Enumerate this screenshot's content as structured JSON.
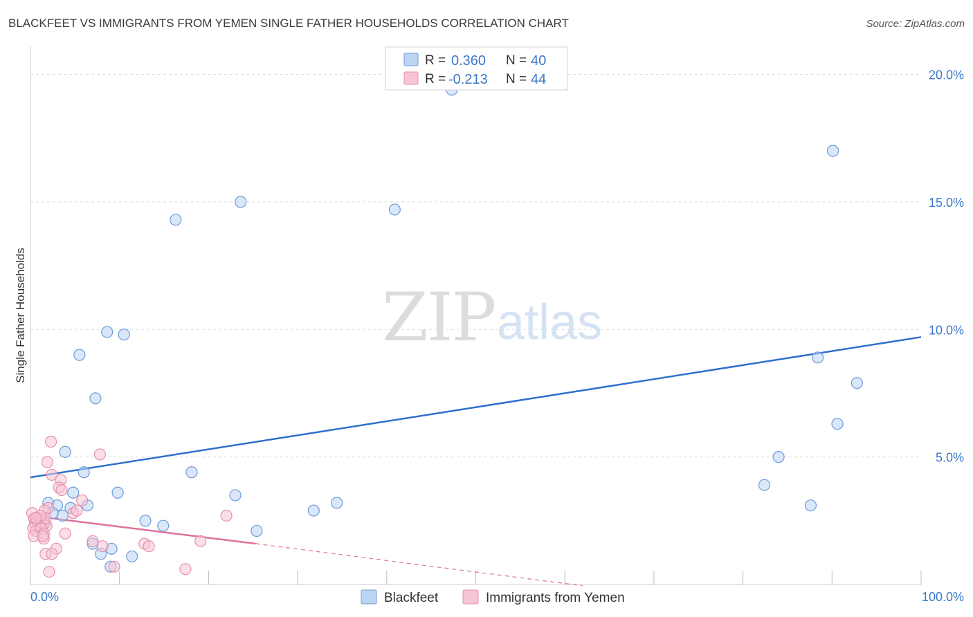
{
  "header": {
    "title": "BLACKFEET VS IMMIGRANTS FROM YEMEN SINGLE FATHER HOUSEHOLDS CORRELATION CHART",
    "source": "Source: ZipAtlas.com"
  },
  "watermark": {
    "zip": "ZIP",
    "atlas": "atlas"
  },
  "legend": {
    "rows": [
      {
        "r_label": "R =",
        "r_value": "0.360",
        "n_label": "N =",
        "n_value": "40"
      },
      {
        "r_label": "R =",
        "r_value": "-0.213",
        "n_label": "N =",
        "n_value": "44"
      }
    ]
  },
  "colors": {
    "blackfeet_fill": "#bcd4f3",
    "blackfeet_stroke": "#6e9bd8",
    "blackfeet_line": "#2f6fcc",
    "yemen_fill": "#f7c5d5",
    "yemen_stroke": "#e690ae",
    "yemen_line": "#e0709a",
    "tick_color": "#3b78c9",
    "grid": "#dddddd"
  },
  "chart_data": {
    "type": "scatter",
    "title": "BLACKFEET VS IMMIGRANTS FROM YEMEN SINGLE FATHER HOUSEHOLDS CORRELATION CHART",
    "xlabel": "",
    "ylabel": "Single Father Households",
    "xlim": [
      0,
      100
    ],
    "ylim": [
      0,
      20.8
    ],
    "x_tick_labels": [
      "0.0%",
      "100.0%"
    ],
    "y_ticks": [
      5,
      10,
      15,
      20
    ],
    "y_tick_labels": [
      "5.0%",
      "10.0%",
      "15.0%",
      "20.0%"
    ],
    "grid": true,
    "series": [
      {
        "name": "Blackfeet",
        "legend_label": "Blackfeet",
        "r": 0.36,
        "n": 40,
        "trend": {
          "x": [
            0,
            100
          ],
          "y": [
            4.2,
            9.7
          ],
          "dashed_extension": false
        },
        "points": [
          [
            47.3,
            19.4
          ],
          [
            90.1,
            17.0
          ],
          [
            23.6,
            15.0
          ],
          [
            40.9,
            14.7
          ],
          [
            16.3,
            14.3
          ],
          [
            8.6,
            9.9
          ],
          [
            10.5,
            9.8
          ],
          [
            5.5,
            9.0
          ],
          [
            7.3,
            7.3
          ],
          [
            88.4,
            8.9
          ],
          [
            92.8,
            7.9
          ],
          [
            90.6,
            6.3
          ],
          [
            3.9,
            5.2
          ],
          [
            84.0,
            5.0
          ],
          [
            6.0,
            4.4
          ],
          [
            18.1,
            4.4
          ],
          [
            82.4,
            3.9
          ],
          [
            4.8,
            3.6
          ],
          [
            9.8,
            3.6
          ],
          [
            23.0,
            3.5
          ],
          [
            2.0,
            3.2
          ],
          [
            3.0,
            3.1
          ],
          [
            6.4,
            3.1
          ],
          [
            87.6,
            3.1
          ],
          [
            34.4,
            3.2
          ],
          [
            31.8,
            2.9
          ],
          [
            4.5,
            3.0
          ],
          [
            3.6,
            2.7
          ],
          [
            12.9,
            2.5
          ],
          [
            14.9,
            2.3
          ],
          [
            25.4,
            2.1
          ],
          [
            7.0,
            1.6
          ],
          [
            9.1,
            1.4
          ],
          [
            7.9,
            1.2
          ],
          [
            11.4,
            1.1
          ],
          [
            9.0,
            0.7
          ],
          [
            1.5,
            2.4
          ],
          [
            0.8,
            2.5
          ],
          [
            2.5,
            2.8
          ],
          [
            1.2,
            2.2
          ]
        ]
      },
      {
        "name": "Immigrants from Yemen",
        "legend_label": "Immigrants from Yemen",
        "r": -0.213,
        "n": 44,
        "trend": {
          "x": [
            0,
            25.3
          ],
          "y": [
            2.7,
            1.6
          ],
          "dashed_extension": {
            "x": [
              25.3,
              62
            ],
            "y": [
              1.6,
              -0.05
            ]
          }
        },
        "points": [
          [
            2.3,
            5.6
          ],
          [
            7.8,
            5.1
          ],
          [
            1.9,
            4.8
          ],
          [
            2.4,
            4.3
          ],
          [
            3.4,
            4.1
          ],
          [
            3.2,
            3.8
          ],
          [
            3.5,
            3.7
          ],
          [
            5.8,
            3.3
          ],
          [
            2.0,
            3.0
          ],
          [
            1.6,
            2.9
          ],
          [
            4.8,
            2.8
          ],
          [
            5.2,
            2.9
          ],
          [
            22.0,
            2.7
          ],
          [
            0.4,
            2.6
          ],
          [
            0.7,
            2.5
          ],
          [
            1.0,
            2.6
          ],
          [
            1.4,
            2.5
          ],
          [
            1.6,
            2.4
          ],
          [
            0.5,
            2.4
          ],
          [
            0.9,
            2.3
          ],
          [
            0.3,
            2.2
          ],
          [
            1.8,
            2.3
          ],
          [
            0.6,
            2.1
          ],
          [
            1.2,
            2.2
          ],
          [
            1.5,
            2.0
          ],
          [
            1.7,
            2.6
          ],
          [
            3.9,
            2.0
          ],
          [
            0.4,
            1.9
          ],
          [
            1.5,
            1.8
          ],
          [
            1.4,
            1.9
          ],
          [
            19.1,
            1.7
          ],
          [
            12.8,
            1.6
          ],
          [
            13.3,
            1.5
          ],
          [
            8.1,
            1.5
          ],
          [
            7.0,
            1.7
          ],
          [
            2.9,
            1.4
          ],
          [
            1.7,
            1.2
          ],
          [
            2.4,
            1.2
          ],
          [
            9.4,
            0.7
          ],
          [
            17.4,
            0.6
          ],
          [
            2.1,
            0.5
          ],
          [
            0.2,
            2.8
          ],
          [
            1.1,
            2.7
          ],
          [
            0.6,
            2.6
          ]
        ]
      }
    ],
    "legend_position": "top-center",
    "bottom_legend": [
      "Blackfeet",
      "Immigrants from Yemen"
    ]
  }
}
